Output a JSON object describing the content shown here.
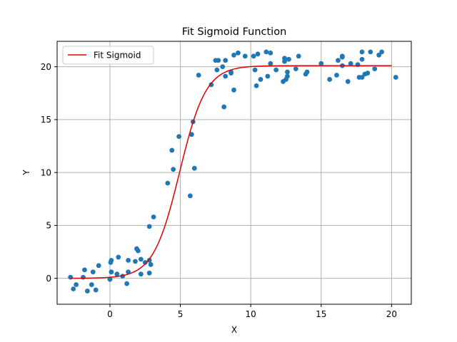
{
  "chart_data": {
    "type": "scatter",
    "title": "Fit Sigmoid Function",
    "xlabel": "X",
    "ylabel": "Y",
    "xlim": [
      -3.75,
      21.4
    ],
    "ylim": [
      -2.45,
      22.4
    ],
    "x_ticks": [
      0,
      5,
      10,
      15,
      20
    ],
    "x_tick_labels": [
      "0",
      "5",
      "10",
      "15",
      "20"
    ],
    "y_ticks": [
      0,
      5,
      10,
      15,
      20
    ],
    "y_tick_labels": [
      "0",
      "5",
      "10",
      "15",
      "20"
    ],
    "grid": true,
    "legend": {
      "placement": "top-left",
      "entries": [
        "Fit Sigmoid"
      ]
    },
    "colors": {
      "points": "#1f77b4",
      "fit": "#e00000",
      "grid": "#b0b0b0"
    },
    "series": [
      {
        "type": "scatter",
        "points": [
          [
            -2.8,
            0.1
          ],
          [
            -2.6,
            -1.0
          ],
          [
            -2.4,
            -0.6
          ],
          [
            -1.9,
            0.1
          ],
          [
            -1.8,
            0.8
          ],
          [
            -1.6,
            -1.2
          ],
          [
            -1.3,
            -0.6
          ],
          [
            -1.2,
            0.6
          ],
          [
            -1.0,
            -1.1
          ],
          [
            -0.8,
            1.2
          ],
          [
            0.0,
            -0.1
          ],
          [
            0.05,
            1.5
          ],
          [
            0.1,
            1.7
          ],
          [
            0.1,
            0.6
          ],
          [
            0.5,
            0.4
          ],
          [
            0.6,
            2.0
          ],
          [
            0.9,
            0.2
          ],
          [
            1.2,
            -0.5
          ],
          [
            1.3,
            0.6
          ],
          [
            1.3,
            1.7
          ],
          [
            1.8,
            1.6
          ],
          [
            1.9,
            2.8
          ],
          [
            2.0,
            2.6
          ],
          [
            2.2,
            0.4
          ],
          [
            2.2,
            1.8
          ],
          [
            2.5,
            1.5
          ],
          [
            2.8,
            0.5
          ],
          [
            2.8,
            1.7
          ],
          [
            2.9,
            1.3
          ],
          [
            2.8,
            4.9
          ],
          [
            3.1,
            5.8
          ],
          [
            4.1,
            9.0
          ],
          [
            4.4,
            12.1
          ],
          [
            4.5,
            10.3
          ],
          [
            4.9,
            13.4
          ],
          [
            5.7,
            7.8
          ],
          [
            5.8,
            13.6
          ],
          [
            5.9,
            14.8
          ],
          [
            6.0,
            10.4
          ],
          [
            6.3,
            19.2
          ],
          [
            7.2,
            18.3
          ],
          [
            7.5,
            20.6
          ],
          [
            7.6,
            19.7
          ],
          [
            7.7,
            20.6
          ],
          [
            8.0,
            20.0
          ],
          [
            8.1,
            16.2
          ],
          [
            8.2,
            19.1
          ],
          [
            8.2,
            20.6
          ],
          [
            8.6,
            19.4
          ],
          [
            8.6,
            19.5
          ],
          [
            8.8,
            17.8
          ],
          [
            8.8,
            21.1
          ],
          [
            9.1,
            21.3
          ],
          [
            9.6,
            21.0
          ],
          [
            10.2,
            21.0
          ],
          [
            10.3,
            19.7
          ],
          [
            10.4,
            18.2
          ],
          [
            10.5,
            21.2
          ],
          [
            10.7,
            18.8
          ],
          [
            11.1,
            21.4
          ],
          [
            11.2,
            19.1
          ],
          [
            11.4,
            20.3
          ],
          [
            11.4,
            21.3
          ],
          [
            11.8,
            19.7
          ],
          [
            12.3,
            18.6
          ],
          [
            12.4,
            20.8
          ],
          [
            12.4,
            20.5
          ],
          [
            12.5,
            18.8
          ],
          [
            12.6,
            19.5
          ],
          [
            12.6,
            19.1
          ],
          [
            12.7,
            20.7
          ],
          [
            13.2,
            19.8
          ],
          [
            13.4,
            21.0
          ],
          [
            13.9,
            19.3
          ],
          [
            14.0,
            19.5
          ],
          [
            15.0,
            20.3
          ],
          [
            15.6,
            18.8
          ],
          [
            16.1,
            19.2
          ],
          [
            16.2,
            20.6
          ],
          [
            16.5,
            20.9
          ],
          [
            16.5,
            21.0
          ],
          [
            16.5,
            20.1
          ],
          [
            16.9,
            18.6
          ],
          [
            17.1,
            20.3
          ],
          [
            17.6,
            20.2
          ],
          [
            17.7,
            19.0
          ],
          [
            17.9,
            20.7
          ],
          [
            17.9,
            21.4
          ],
          [
            17.9,
            19.0
          ],
          [
            18.1,
            19.3
          ],
          [
            18.3,
            19.4
          ],
          [
            18.5,
            21.4
          ],
          [
            18.8,
            19.8
          ],
          [
            19.1,
            21.1
          ],
          [
            19.3,
            21.4
          ],
          [
            20.3,
            19.0
          ]
        ]
      },
      {
        "type": "line",
        "name": "Fit Sigmoid",
        "x_range": [
          -2.8,
          20.0
        ],
        "model": "sigmoid",
        "params": {
          "L": 20.1,
          "k": 1.07,
          "x0": 4.95
        }
      }
    ]
  }
}
